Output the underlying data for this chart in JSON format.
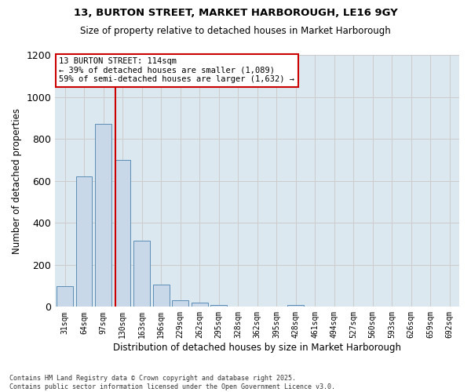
{
  "title1": "13, BURTON STREET, MARKET HARBOROUGH, LE16 9GY",
  "title2": "Size of property relative to detached houses in Market Harborough",
  "xlabel": "Distribution of detached houses by size in Market Harborough",
  "ylabel": "Number of detached properties",
  "footer1": "Contains HM Land Registry data © Crown copyright and database right 2025.",
  "footer2": "Contains public sector information licensed under the Open Government Licence v3.0.",
  "annotation_title": "13 BURTON STREET: 114sqm",
  "annotation_line1": "← 39% of detached houses are smaller (1,089)",
  "annotation_line2": "59% of semi-detached houses are larger (1,632) →",
  "bar_labels": [
    "31sqm",
    "64sqm",
    "97sqm",
    "130sqm",
    "163sqm",
    "196sqm",
    "229sqm",
    "262sqm",
    "295sqm",
    "328sqm",
    "362sqm",
    "395sqm",
    "428sqm",
    "461sqm",
    "494sqm",
    "527sqm",
    "560sqm",
    "593sqm",
    "626sqm",
    "659sqm",
    "692sqm"
  ],
  "bar_values": [
    100,
    620,
    870,
    700,
    315,
    105,
    30,
    20,
    8,
    0,
    0,
    0,
    10,
    0,
    0,
    0,
    0,
    0,
    0,
    0,
    0
  ],
  "bar_color": "#c8d8e8",
  "bar_edge_color": "#5b8db8",
  "vline_x": 2.62,
  "vline_color": "#cc0000",
  "grid_color": "#cccccc",
  "bg_color": "#dce8f0",
  "annotation_box_color": "#cc0000",
  "ylim": [
    0,
    1200
  ],
  "yticks": [
    0,
    200,
    400,
    600,
    800,
    1000,
    1200
  ]
}
